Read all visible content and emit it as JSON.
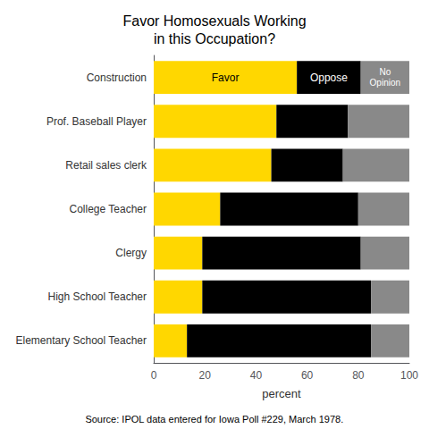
{
  "chart_data": {
    "type": "bar",
    "orientation": "horizontal",
    "stacked": true,
    "title": "Favor Homosexuals Working\nin this Occupation?",
    "categories": [
      "Construction",
      "Prof. Baseball Player",
      "Retail sales clerk",
      "College Teacher",
      "Clergy",
      "High School Teacher",
      "Elementary School Teacher"
    ],
    "series": [
      {
        "name": "Favor",
        "color": "#FFD700",
        "values": [
          56,
          48,
          46,
          26,
          19,
          19,
          13
        ]
      },
      {
        "name": "Oppose",
        "color": "#000000",
        "values": [
          25,
          28,
          28,
          54,
          62,
          66,
          72
        ]
      },
      {
        "name": "No\nOpinion",
        "color": "#898989",
        "values": [
          19,
          24,
          26,
          20,
          19,
          15,
          15
        ]
      }
    ],
    "xlabel": "percent",
    "xlim": [
      0,
      100
    ],
    "xticks": [
      0,
      20,
      40,
      60,
      80,
      100
    ],
    "grid": false,
    "annotations": [
      "Source: IPOL data entered for Iowa Poll #229, March 1978."
    ]
  }
}
